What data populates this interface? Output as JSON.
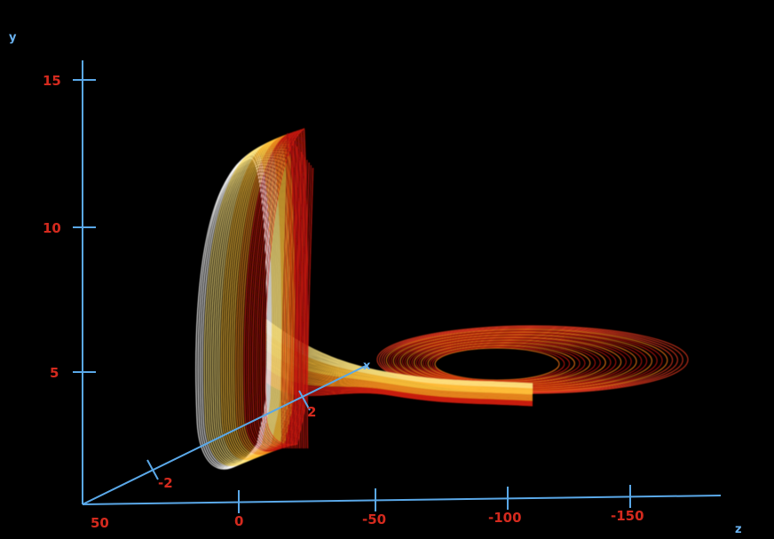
{
  "chart_data": {
    "type": "line",
    "title": "",
    "projection": "3d-perspective",
    "grid": false,
    "legend": "none",
    "background_color": "#000000",
    "axis_color": "#5aa8e8",
    "tick_label_color": "#d42a1e",
    "trajectory_colors": [
      "#ffffff",
      "#ffe680",
      "#ffc23a",
      "#f08a1c",
      "#d41e10",
      "#b01208"
    ],
    "axes": {
      "y": {
        "label": "y",
        "ticks": [
          "15",
          "10",
          "5"
        ],
        "ylim": [
          0,
          16
        ]
      },
      "z": {
        "label": "z",
        "ticks": [
          "50",
          "0",
          "-50",
          "-100",
          "-150"
        ],
        "zlim": [
          60,
          -180
        ]
      },
      "x": {
        "label": "x",
        "ticks": [
          "-2",
          "2"
        ]
      }
    },
    "series": [
      {
        "values_description": "",
        "lobes": [
          {
            "z_range": [
              -25,
              5
            ],
            "y_range": [
              1,
              13.7
            ]
          },
          {
            "z_range": [
              -55,
              -150
            ],
            "y_range": [
              4,
              5.6
            ]
          }
        ]
      }
    ]
  }
}
